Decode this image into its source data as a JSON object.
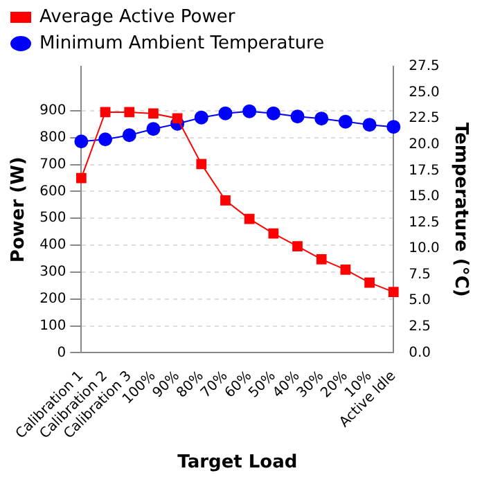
{
  "chart_data": {
    "type": "line",
    "categories": [
      "Calibration 1",
      "Calibration 2",
      "Calibration 3",
      "100%",
      "90%",
      "80%",
      "70%",
      "60%",
      "50%",
      "40%",
      "30%",
      "20%",
      "10%",
      "Active Idle"
    ],
    "series": [
      {
        "name": "Average Active Power",
        "color": "#ff0000",
        "marker": "square",
        "values": [
          650,
          895,
          895,
          890,
          872,
          702,
          567,
          498,
          444,
          396,
          348,
          309,
          261,
          226
        ]
      },
      {
        "name": "Minimum Ambient Temperature",
        "color": "#0000ff",
        "marker": "circle",
        "axis": "y2",
        "values": [
          20.3,
          20.5,
          20.9,
          21.5,
          22.0,
          22.6,
          23.0,
          23.2,
          23.0,
          22.7,
          22.5,
          22.2,
          21.9,
          21.7
        ]
      }
    ],
    "xlabel": "Target Load",
    "ylabel": "Power (W)",
    "y2label": "Temperature (°C)",
    "ylim": [
      0,
      1065
    ],
    "yticks": [
      0,
      100,
      200,
      300,
      400,
      500,
      600,
      700,
      800,
      900
    ],
    "y2lim": [
      0,
      27.5
    ],
    "y2ticks": [
      {
        "value": 0,
        "label": "0.0"
      },
      {
        "value": 2.5,
        "label": "2.5"
      },
      {
        "value": 5,
        "label": "5.0"
      },
      {
        "value": 7.5,
        "label": "7.5"
      },
      {
        "value": 10,
        "label": "10.0"
      },
      {
        "value": 12.5,
        "label": "12.5"
      },
      {
        "value": 15,
        "label": "15.0"
      },
      {
        "value": 17.5,
        "label": "17.5"
      },
      {
        "value": 20,
        "label": "20.0"
      },
      {
        "value": 22.5,
        "label": "22.5"
      },
      {
        "value": 25,
        "label": "25.0"
      },
      {
        "value": 27.5,
        "label": "27.5"
      }
    ],
    "grid": "y",
    "legend": "top",
    "line_style": "solid"
  }
}
